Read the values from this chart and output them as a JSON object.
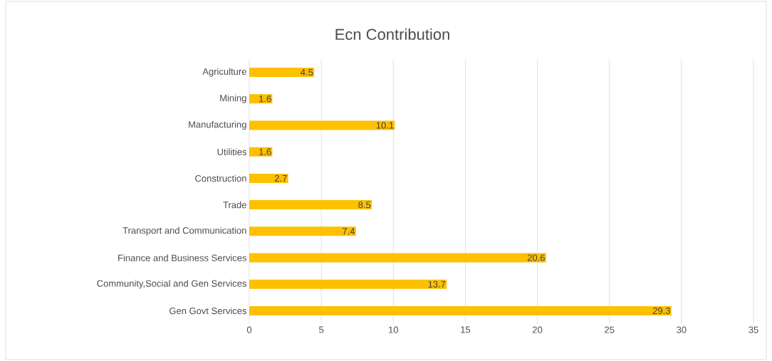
{
  "chart_data": {
    "type": "bar",
    "orientation": "horizontal",
    "title": "Ecn Contribution",
    "categories": [
      "Agriculture",
      "Mining",
      "Manufacturing",
      "Utilities",
      "Construction",
      "Trade",
      "Transport and Communication",
      "Finance and Business Services",
      "Community,Social and Gen Services",
      "Gen Govt Services"
    ],
    "values": [
      4.5,
      1.6,
      10.1,
      1.6,
      2.7,
      8.5,
      7.4,
      20.6,
      13.7,
      29.3
    ],
    "color": "#ffc000",
    "xlim": [
      0,
      35
    ],
    "xticks": [
      0,
      5,
      10,
      15,
      20,
      25,
      30,
      35
    ],
    "grid": "x",
    "data_labels": true
  }
}
